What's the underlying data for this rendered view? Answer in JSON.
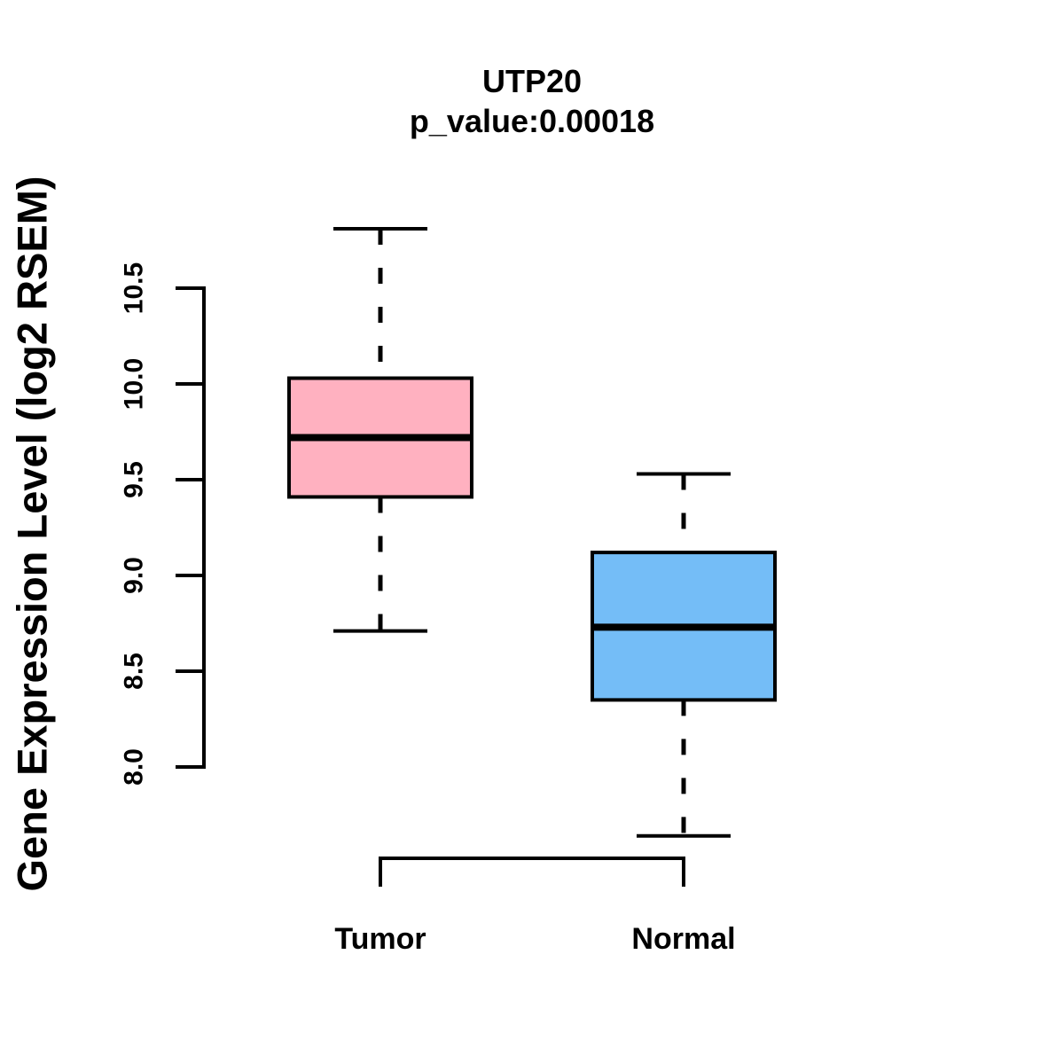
{
  "chart_data": {
    "type": "boxplot",
    "title": "UTP20",
    "subtitle": "p_value:0.00018",
    "ylabel": "Gene Expression Level (log2 RSEM)",
    "xlabel": "",
    "categories": [
      "Tumor",
      "Normal"
    ],
    "yticks": [
      8.0,
      8.5,
      9.0,
      9.5,
      10.0,
      10.5
    ],
    "ytick_labels": [
      "8.0",
      "8.5",
      "9.0",
      "9.5",
      "10.0",
      "10.5"
    ],
    "ylim": [
      7.5,
      11.0
    ],
    "grid": false,
    "legend": "none",
    "series": [
      {
        "name": "Tumor",
        "fill_color": "#FFB1C0",
        "whisker_low": 8.71,
        "q1": 9.41,
        "median": 9.72,
        "q3": 10.03,
        "whisker_high": 10.81
      },
      {
        "name": "Normal",
        "fill_color": "#74BDF7",
        "whisker_low": 7.64,
        "q1": 8.35,
        "median": 8.73,
        "q3": 9.12,
        "whisker_high": 9.53
      }
    ],
    "colors": {
      "tumor_fill": "#FFB1C0",
      "normal_fill": "#74BDF7",
      "line": "#000000",
      "text": "#000000",
      "background": "#ffffff"
    }
  }
}
